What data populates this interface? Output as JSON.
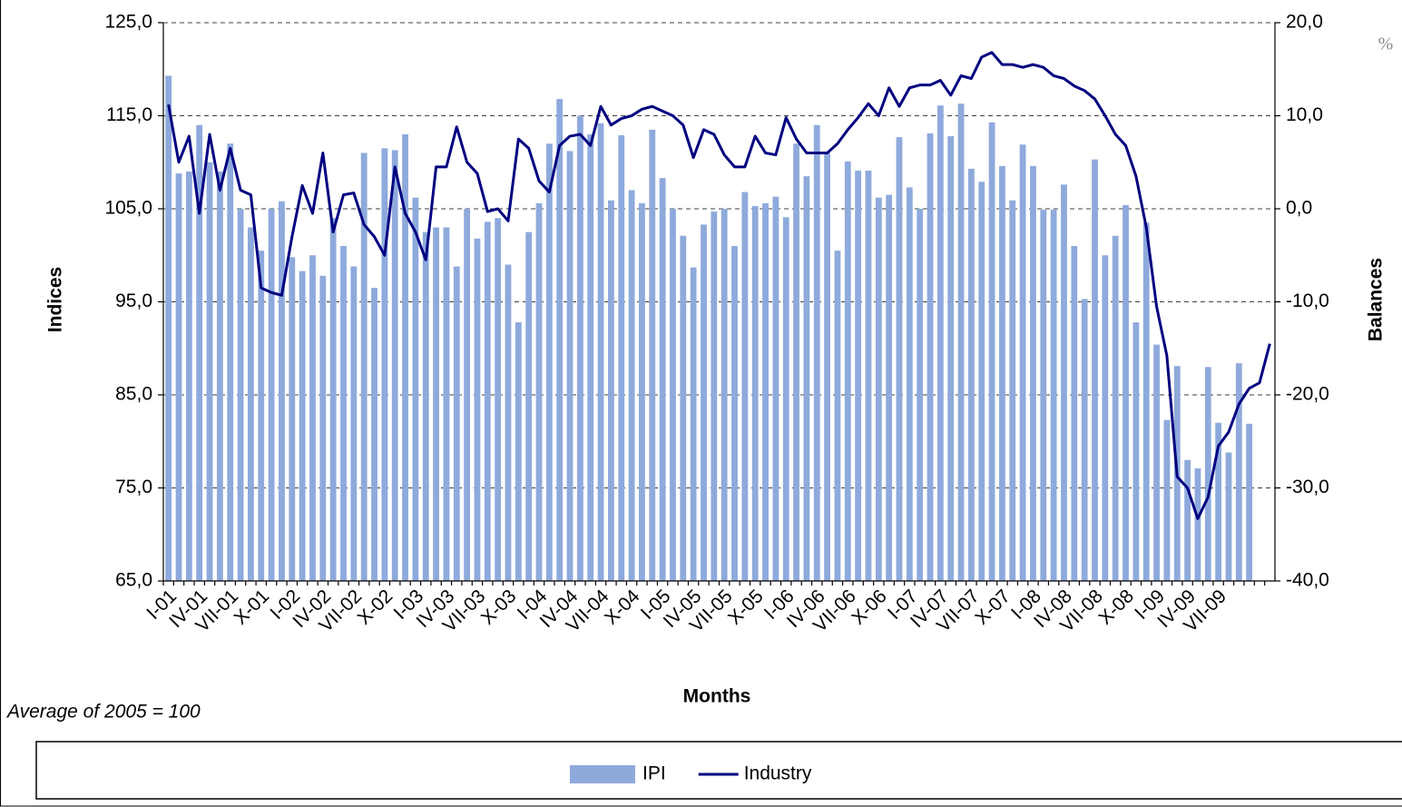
{
  "chart_data": {
    "type": "bar-line",
    "unit_note": "%",
    "y_title": "Indices",
    "y2_title": "Balances",
    "x_title": "Months",
    "footnote": "Average of 2005 = 100",
    "categories": [
      "I-01",
      null,
      null,
      "IV-01",
      null,
      null,
      "VII-01",
      null,
      null,
      "X-01",
      null,
      null,
      "I-02",
      null,
      null,
      "IV-02",
      null,
      null,
      "VII-02",
      null,
      null,
      "X-02",
      null,
      null,
      "I-03",
      null,
      null,
      "IV-03",
      null,
      null,
      "VII-03",
      null,
      null,
      "X-03",
      null,
      null,
      "I-04",
      null,
      null,
      "IV-04",
      null,
      null,
      "VII-04",
      null,
      null,
      "X-04",
      null,
      null,
      "I-05",
      null,
      null,
      "IV-05",
      null,
      null,
      "VII-05",
      null,
      null,
      "X-05",
      null,
      null,
      "I-06",
      null,
      null,
      "IV-06",
      null,
      null,
      "VII-06",
      null,
      null,
      "X-06",
      null,
      null,
      "I-07",
      null,
      null,
      "IV-07",
      null,
      null,
      "VII-07",
      null,
      null,
      "X-07",
      null,
      null,
      "I-08",
      null,
      null,
      "IV-08",
      null,
      null,
      "VII-08",
      null,
      null,
      "X-08",
      null,
      null,
      "I-09",
      null,
      null,
      "IV-09",
      null,
      null,
      "VII-09",
      null,
      null,
      null,
      null,
      null
    ],
    "series": [
      {
        "name": "IPI",
        "kind": "bar",
        "color": "#8eaadc",
        "values": [
          119.3,
          108.8,
          109.0,
          114.0,
          110,
          109,
          112,
          105,
          103,
          100.5,
          105,
          105.8,
          99.8,
          98.3,
          100,
          97.8,
          104,
          101,
          98.8,
          111,
          96.5,
          111.5,
          111.3,
          113,
          106.2,
          102.5,
          103,
          103,
          98.8,
          105,
          101.8,
          103.6,
          104,
          99,
          92.8,
          102.5,
          105.6,
          112,
          116.8,
          111.2,
          115,
          113,
          114.2,
          105.9,
          112.9,
          107,
          105.6,
          113.5,
          108.3,
          105,
          102.1,
          98.7,
          103.3,
          104.7,
          105,
          101,
          106.8,
          105.3,
          105.6,
          106.3,
          104.1,
          112,
          108.5,
          114,
          111,
          100.5,
          110.1,
          109.1,
          109.1,
          106.2,
          106.5,
          112.7,
          107.3,
          105,
          113.1,
          116.1,
          112.8,
          116.3,
          109.3,
          107.9,
          114.3,
          109.6,
          105.9,
          111.9,
          109.6,
          104.9,
          104.9,
          107.6,
          101,
          95.3,
          110.3,
          100,
          102.1,
          105.4,
          92.8,
          103.5,
          90.4,
          82.3,
          88.1,
          78,
          77.1,
          88,
          82,
          78.8,
          88.4,
          81.9,
          null,
          null
        ]
      },
      {
        "name": "Industry",
        "kind": "line",
        "axis": "y2",
        "color": "#000080",
        "values": [
          11.2,
          5.0,
          7.8,
          -0.5,
          8.0,
          2.0,
          6.5,
          2.0,
          1.5,
          -8.5,
          -9.0,
          -9.3,
          -3.0,
          2.5,
          -0.5,
          6.0,
          -2.5,
          1.5,
          1.7,
          -1.7,
          -3.0,
          -5.0,
          4.5,
          -0.5,
          -2.5,
          -5.5,
          4.5,
          4.5,
          8.8,
          5.0,
          3.8,
          -0.3,
          0.0,
          -1.3,
          7.5,
          6.5,
          3.0,
          1.8,
          6.8,
          7.8,
          8.0,
          6.8,
          11.0,
          9.0,
          9.7,
          10.0,
          10.7,
          11.0,
          10.5,
          10.0,
          9.0,
          5.5,
          8.5,
          8.0,
          5.8,
          4.5,
          4.5,
          7.8,
          6.0,
          5.8,
          9.8,
          7.5,
          6.0,
          6.0,
          6.0,
          7.0,
          8.5,
          9.8,
          11.3,
          10.0,
          13.0,
          11.0,
          13.0,
          13.3,
          13.3,
          13.8,
          12.2,
          14.3,
          14.0,
          16.3,
          16.8,
          15.5,
          15.5,
          15.2,
          15.5,
          15.2,
          14.3,
          14.0,
          13.2,
          12.7,
          11.8,
          10.0,
          8.0,
          6.8,
          3.5,
          -2.0,
          -10.5,
          -15.8,
          -28.8,
          -30.0,
          -33.3,
          -31.0,
          -25.5,
          -24.0,
          -21.0,
          -19.3,
          -18.7,
          -14.5
        ]
      }
    ],
    "ylim": [
      65,
      125
    ],
    "yticks": [
      {
        "value": 65,
        "label": "65,0"
      },
      {
        "value": 75,
        "label": "75,0"
      },
      {
        "value": 85,
        "label": "85,0"
      },
      {
        "value": 95,
        "label": "95,0"
      },
      {
        "value": 105,
        "label": "105,0"
      },
      {
        "value": 115,
        "label": "115,0"
      },
      {
        "value": 125,
        "label": "125,0"
      }
    ],
    "y2lim": [
      -40,
      20
    ],
    "y2ticks": [
      {
        "value": -40,
        "label": "-40,0"
      },
      {
        "value": -30,
        "label": "-30,0"
      },
      {
        "value": -20,
        "label": "-20,0"
      },
      {
        "value": -10,
        "label": "-10,0"
      },
      {
        "value": 0,
        "label": "0,0"
      },
      {
        "value": 10,
        "label": "10,0"
      },
      {
        "value": 20,
        "label": "20,0"
      }
    ],
    "grid": true
  }
}
